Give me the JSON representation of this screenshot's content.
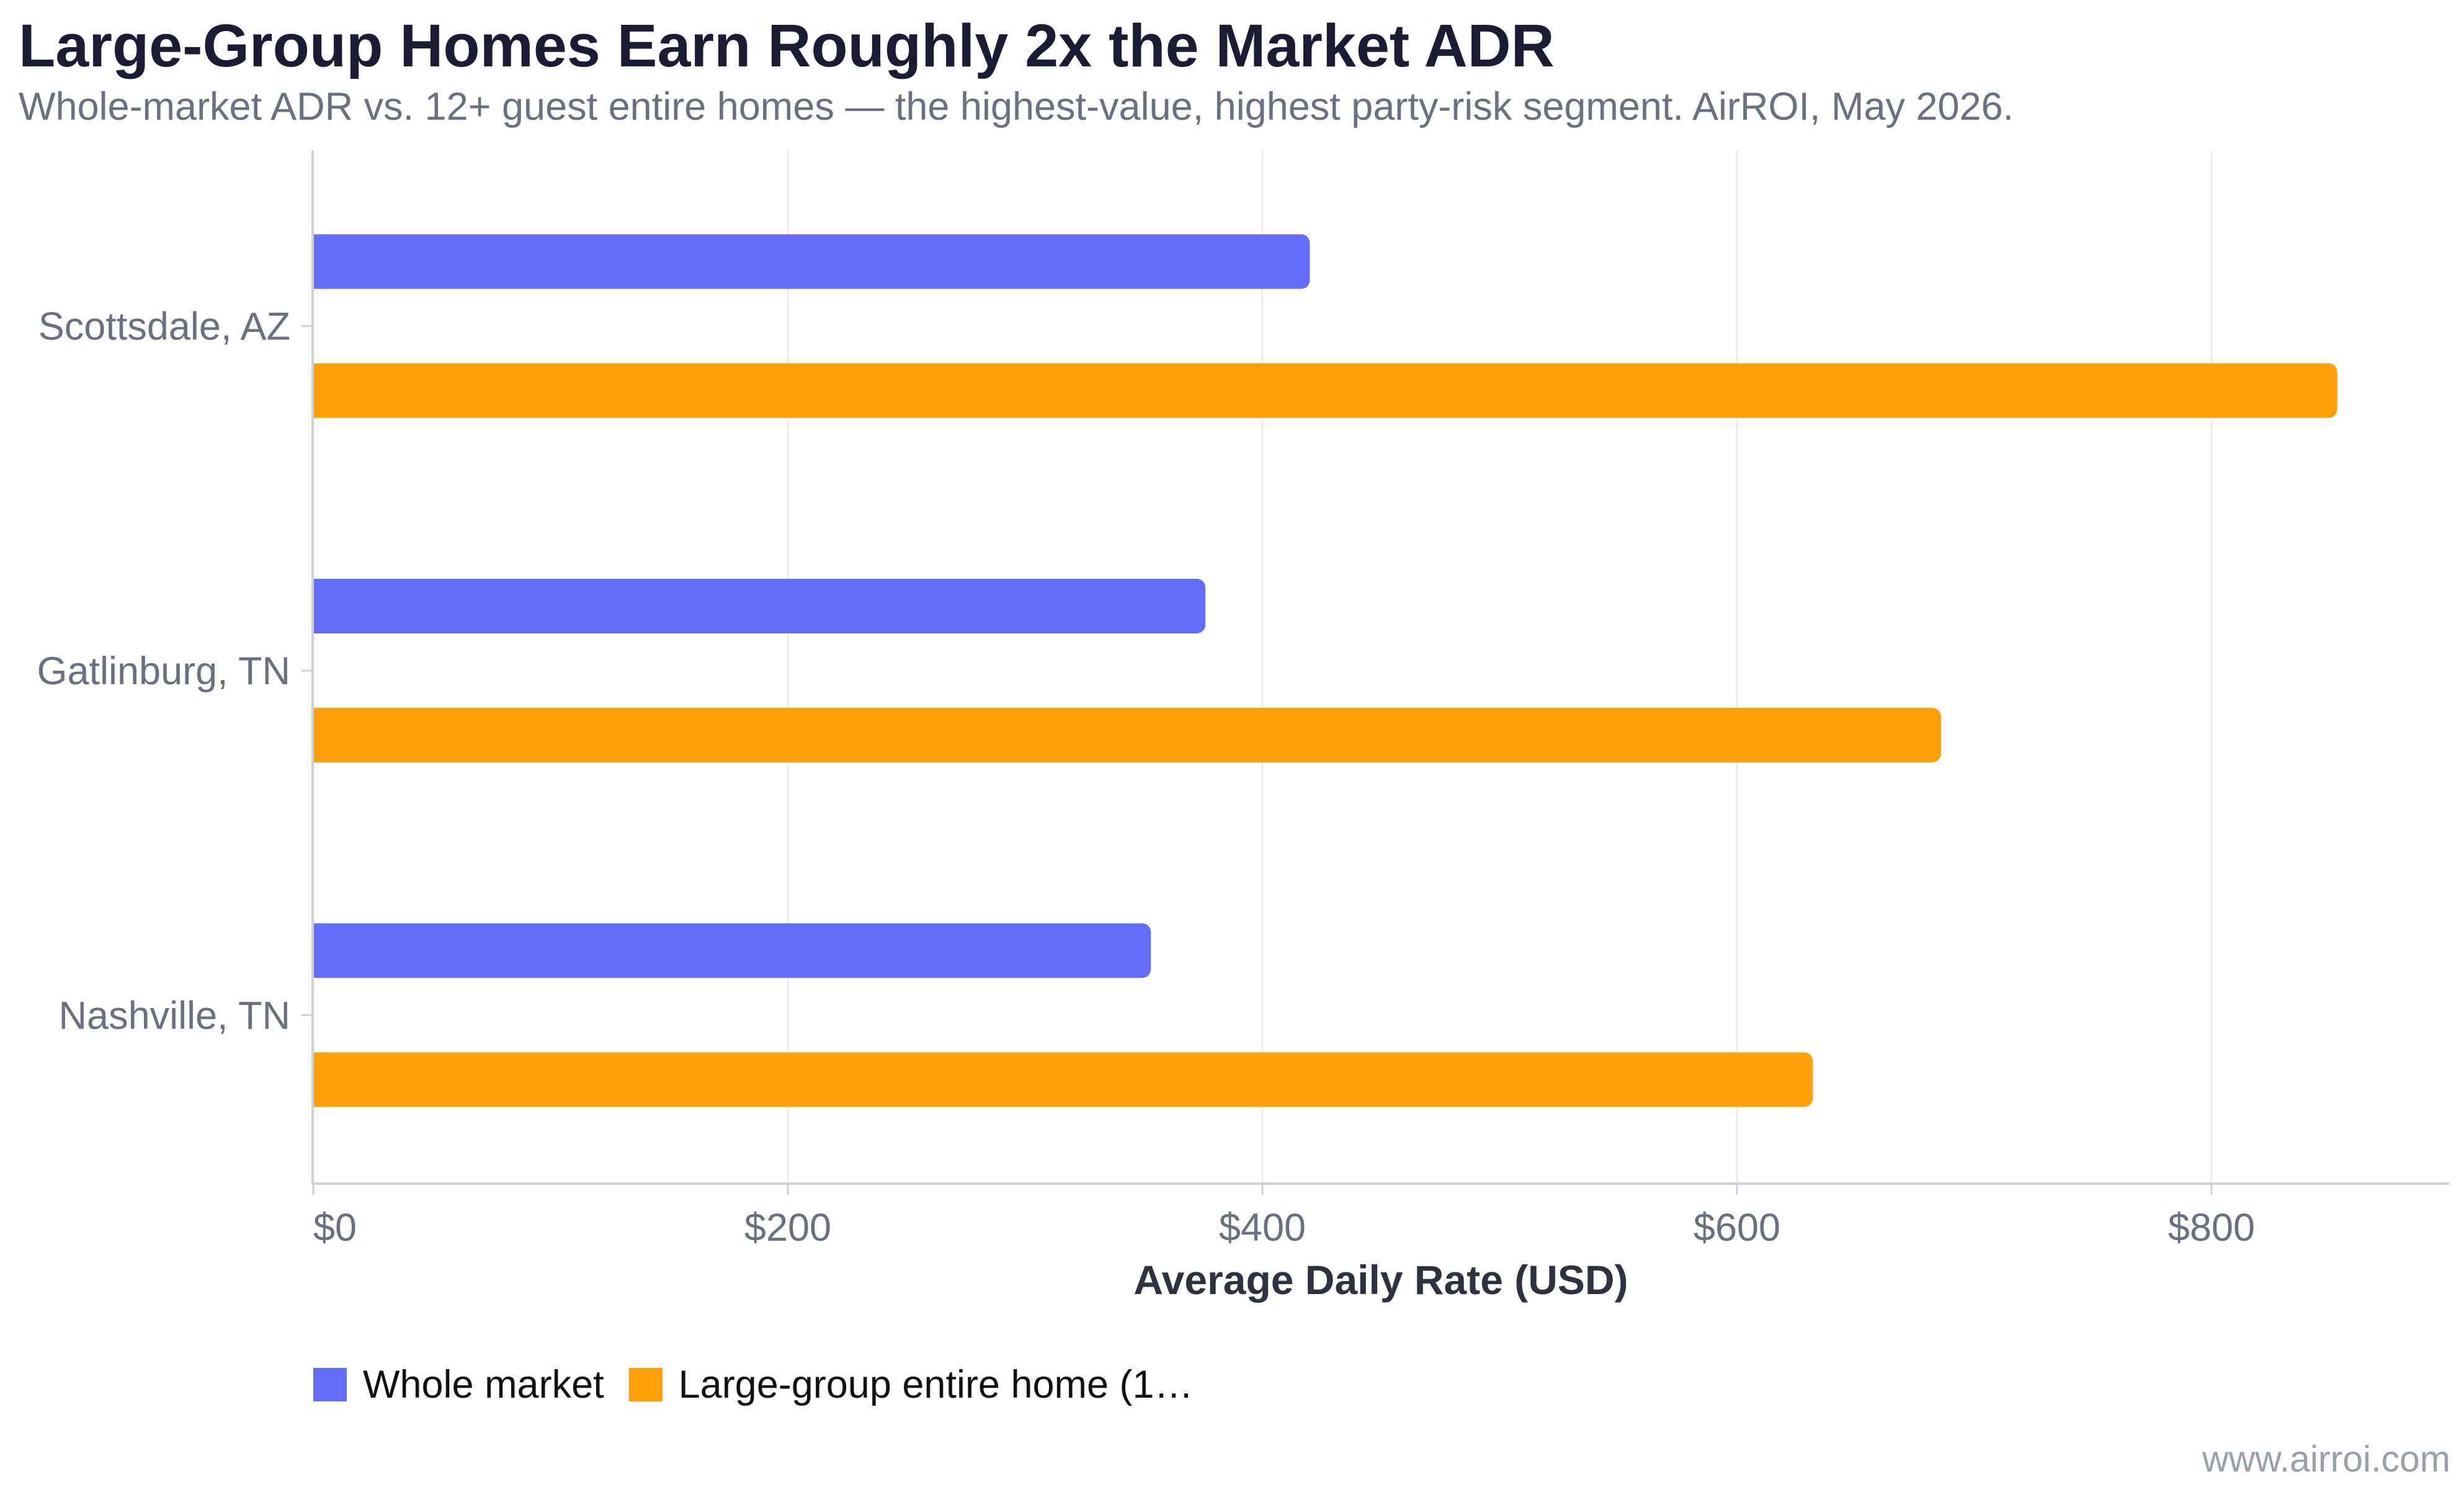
{
  "title": "Large-Group Homes Earn Roughly 2x the Market ADR",
  "subtitle": "Whole-market ADR vs. 12+ guest entire homes — the highest-value, highest party-risk segment. AirROI, May 2026.",
  "watermark": "www.airroi.com",
  "colors": {
    "whole_market": "#646cfa",
    "large_group": "#ffa00a",
    "grid": "#ececf2",
    "axis": "#cfd0da"
  },
  "chart_data": {
    "type": "bar",
    "orientation": "horizontal",
    "categories": [
      "Scottsdale, AZ",
      "Gatlinburg, TN",
      "Nashville, TN"
    ],
    "series": [
      {
        "name": "Whole market",
        "values": [
          420,
          376,
          353
        ]
      },
      {
        "name": "Large-group entire home (1…",
        "values": [
          853,
          686,
          632
        ]
      }
    ],
    "xlabel": "Average Daily Rate (USD)",
    "ylabel": "",
    "xlim": [
      0,
      900
    ],
    "xticks": [
      0,
      200,
      400,
      600,
      800
    ],
    "xtick_labels": [
      "$0",
      "$200",
      "$400",
      "$600",
      "$800"
    ],
    "grid": "vertical",
    "legend_position": "bottom-left"
  }
}
